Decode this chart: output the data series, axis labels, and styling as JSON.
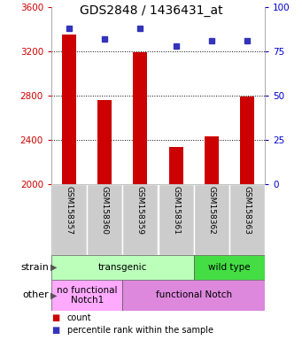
{
  "title": "GDS2848 / 1436431_at",
  "samples": [
    "GSM158357",
    "GSM158360",
    "GSM158359",
    "GSM158361",
    "GSM158362",
    "GSM158363"
  ],
  "counts": [
    3350,
    2760,
    3190,
    2340,
    2430,
    2790
  ],
  "percentiles": [
    88,
    82,
    88,
    78,
    81,
    81
  ],
  "ylim_left": [
    2000,
    3600
  ],
  "ylim_right": [
    0,
    100
  ],
  "yticks_left": [
    2000,
    2400,
    2800,
    3200,
    3600
  ],
  "yticks_right": [
    0,
    25,
    50,
    75,
    100
  ],
  "bar_color": "#cc0000",
  "dot_color": "#3333bb",
  "strain_labels": [
    {
      "text": "transgenic",
      "start": 0,
      "end": 4,
      "color": "#bbffbb"
    },
    {
      "text": "wild type",
      "start": 4,
      "end": 6,
      "color": "#44dd44"
    }
  ],
  "other_labels": [
    {
      "text": "no functional\nNotch1",
      "start": 0,
      "end": 2,
      "color": "#ffaaff"
    },
    {
      "text": "functional Notch",
      "start": 2,
      "end": 6,
      "color": "#dd88dd"
    }
  ],
  "legend_items": [
    {
      "color": "#cc0000",
      "label": "count"
    },
    {
      "color": "#3333bb",
      "label": "percentile rank within the sample"
    }
  ],
  "row_label_strain": "strain",
  "row_label_other": "other",
  "background_color": "#ffffff",
  "tick_label_color_left": "#cc0000",
  "tick_label_color_right": "#0000cc",
  "grid_color": "#555555",
  "label_box_color": "#cccccc",
  "label_box_edge": "#aaaaaa",
  "bar_width": 0.4,
  "title_fontsize": 10,
  "tick_fontsize": 7.5,
  "sample_fontsize": 6.5,
  "annotation_fontsize": 7.5,
  "legend_fontsize": 7
}
